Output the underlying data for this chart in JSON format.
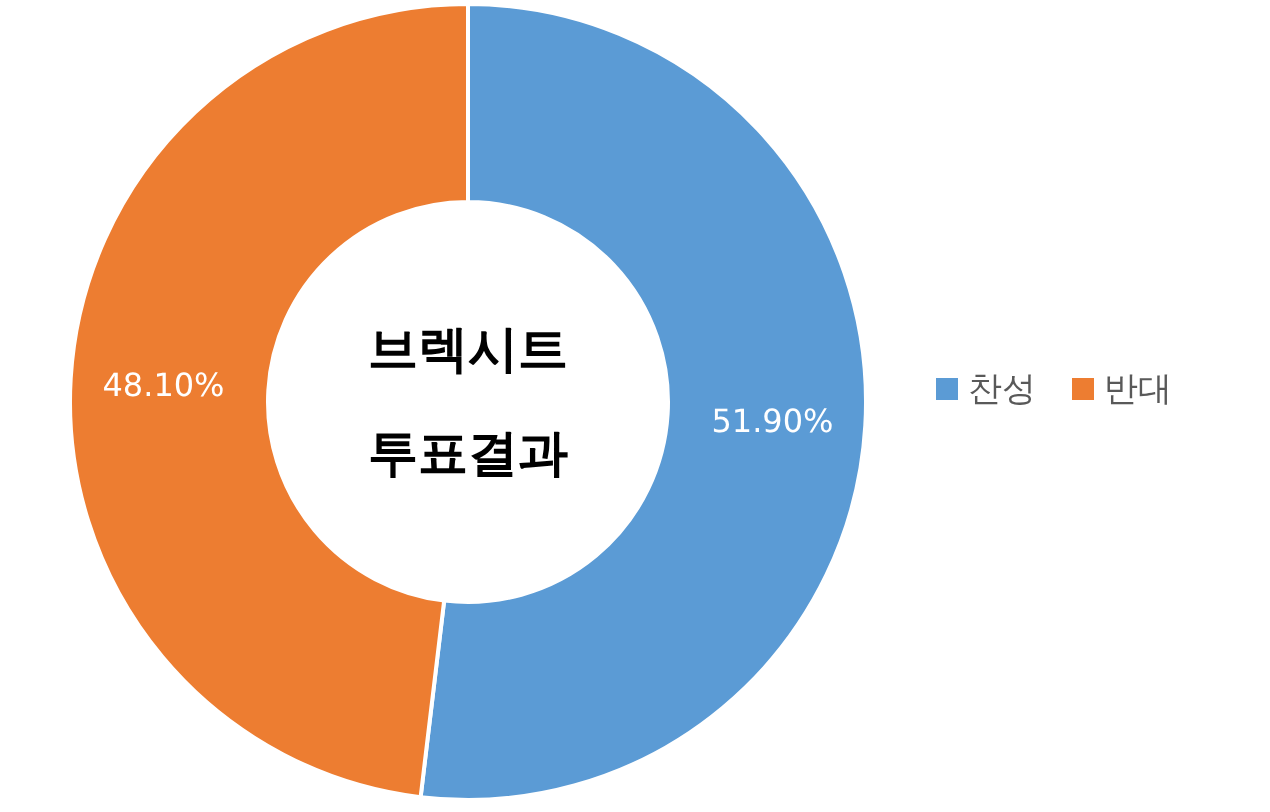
{
  "chart_data": {
    "type": "donut",
    "title": "브렉시트 투표결과",
    "categories": [
      "찬성",
      "반대"
    ],
    "values": [
      51.9,
      48.1
    ],
    "colors": [
      "#5b9bd5",
      "#ed7d31"
    ],
    "value_labels": [
      "51.90%",
      "48.10%"
    ],
    "legend": "right"
  }
}
